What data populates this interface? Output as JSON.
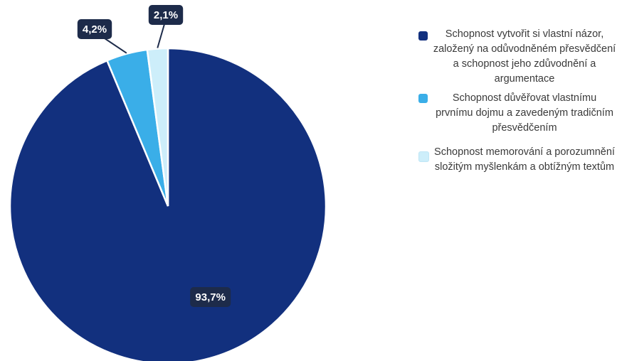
{
  "chart_data": {
    "type": "pie",
    "title": "",
    "slices": [
      {
        "label": "Schopnost vytvořit si vlastní názor, založený na odůvodněném přesvědčení a schopnost jeho zdůvodnění a argumentace",
        "value": 93.7,
        "display": "93,7%",
        "color": "#12307e"
      },
      {
        "label": "Schopnost důvěřovat vlastnímu prvnímu dojmu a zavedeným tradičním přesvědčením",
        "value": 4.2,
        "display": "4,2%",
        "color": "#3aaee8"
      },
      {
        "label": "Schopnost memorování a porozumnění složitým myšlenkám a obtížným textům",
        "value": 2.1,
        "display": "2,1%",
        "color": "#cdeefa"
      }
    ],
    "legend_position": "right",
    "label_box_color": "#1d2b4a"
  }
}
